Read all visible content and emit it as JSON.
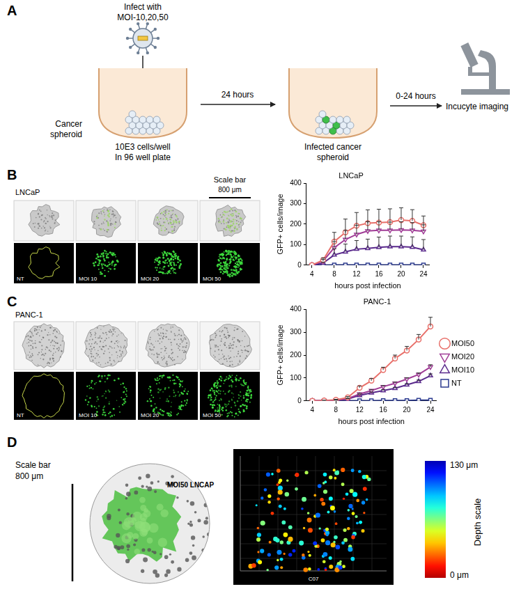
{
  "panels": {
    "A": {
      "label": "A",
      "infect": [
        "Infect with",
        "MOI-10,20,50"
      ],
      "spheroid": [
        "Cancer",
        "spheroid"
      ],
      "wells": [
        "10E3 cells/well",
        "In 96 well plate"
      ],
      "step1": "24 hours",
      "infected": [
        "Infected cancer",
        "spheroid"
      ],
      "step2": "0-24 hours",
      "imaging": "Incucyte imaging"
    },
    "B": {
      "label": "B",
      "cell_line": "LNCaP",
      "scale_bar": [
        "Scale bar",
        "800 μm"
      ],
      "conditions": [
        "NT",
        "MOI 10",
        "MOI 20",
        "MOI 50"
      ]
    },
    "C": {
      "label": "C",
      "cell_line": "PANC-1",
      "conditions": [
        "NT",
        "MOI 10",
        "MOI 20",
        "MOI 50"
      ]
    },
    "D": {
      "label": "D",
      "scale_bar": [
        "Scale bar",
        "800 μm"
      ],
      "image_label": "MOI50 LNCAP",
      "depth_title": "Depth scale",
      "depth_max": "130 μm",
      "depth_min": "0 μm",
      "stack_label": "C07"
    }
  },
  "chart_data": [
    {
      "type": "line",
      "title": "LNCaP",
      "x_label": "hours post infection",
      "y_label": "GFP+ cells/image",
      "x": [
        4,
        6,
        8,
        10,
        12,
        14,
        16,
        18,
        20,
        22,
        24
      ],
      "xlim": [
        3,
        25
      ],
      "xticks": [
        4,
        8,
        12,
        16,
        20,
        24
      ],
      "ylim": [
        0,
        400
      ],
      "yticks": [
        0,
        100,
        200,
        300,
        400
      ],
      "grid": false,
      "series": [
        {
          "name": "MOI50",
          "color": "#e8706a",
          "marker": "circle",
          "values": [
            0,
            25,
            115,
            160,
            192,
            205,
            208,
            210,
            220,
            216,
            195
          ],
          "errors": [
            0,
            10,
            45,
            65,
            65,
            65,
            65,
            65,
            60,
            55,
            45
          ]
        },
        {
          "name": "MOI20",
          "color": "#a03c96",
          "marker": "triangle-down",
          "values": [
            0,
            20,
            85,
            125,
            150,
            167,
            170,
            170,
            172,
            170,
            165
          ],
          "errors": [
            0,
            8,
            30,
            45,
            45,
            45,
            42,
            40,
            40,
            38,
            32
          ]
        },
        {
          "name": "MOI10",
          "color": "#5a2a8c",
          "marker": "triangle",
          "values": [
            0,
            10,
            50,
            65,
            78,
            82,
            87,
            90,
            90,
            88,
            75
          ],
          "errors": [
            0,
            5,
            30,
            38,
            42,
            45,
            50,
            52,
            52,
            50,
            50
          ]
        },
        {
          "name": "NT",
          "color": "#2b3a8f",
          "marker": "square",
          "values": [
            0,
            0,
            1,
            1,
            1,
            1,
            1,
            1,
            1,
            1,
            1
          ],
          "errors": [
            0,
            0,
            0,
            0,
            0,
            0,
            0,
            0,
            0,
            0,
            0
          ]
        }
      ]
    },
    {
      "type": "line",
      "title": "PANC-1",
      "x_label": "hours post infection",
      "y_label": "GFP+ cells/image",
      "x": [
        4,
        6,
        8,
        10,
        12,
        14,
        16,
        18,
        20,
        22,
        24
      ],
      "xlim": [
        3,
        25
      ],
      "xticks": [
        4,
        8,
        12,
        16,
        20,
        24
      ],
      "ylim": [
        0,
        400
      ],
      "yticks": [
        0,
        100,
        200,
        300,
        400
      ],
      "grid": false,
      "legend": "right",
      "series": [
        {
          "name": "MOI50",
          "color": "#e8706a",
          "marker": "circle",
          "values": [
            0,
            2,
            5,
            15,
            57,
            88,
            135,
            185,
            220,
            268,
            325
          ],
          "errors": [
            0,
            1,
            2,
            4,
            8,
            10,
            12,
            15,
            18,
            22,
            40
          ]
        },
        {
          "name": "MOI20",
          "color": "#a03c96",
          "marker": "triangle-down",
          "values": [
            0,
            1,
            3,
            10,
            30,
            45,
            62,
            77,
            95,
            115,
            148
          ],
          "errors": [
            0,
            1,
            1,
            2,
            3,
            4,
            5,
            5,
            6,
            7,
            10
          ]
        },
        {
          "name": "MOI10",
          "color": "#5a2a8c",
          "marker": "triangle",
          "values": [
            0,
            1,
            2,
            8,
            24,
            35,
            45,
            55,
            70,
            85,
            110
          ],
          "errors": [
            0,
            0,
            1,
            2,
            3,
            4,
            4,
            4,
            5,
            6,
            8
          ]
        },
        {
          "name": "NT",
          "color": "#2b3a8f",
          "marker": "square",
          "values": [
            0,
            0,
            0,
            1,
            1,
            1,
            2,
            2,
            2,
            3,
            3
          ],
          "errors": [
            0,
            0,
            0,
            0,
            0,
            0,
            0,
            0,
            0,
            0,
            0
          ]
        }
      ]
    }
  ]
}
